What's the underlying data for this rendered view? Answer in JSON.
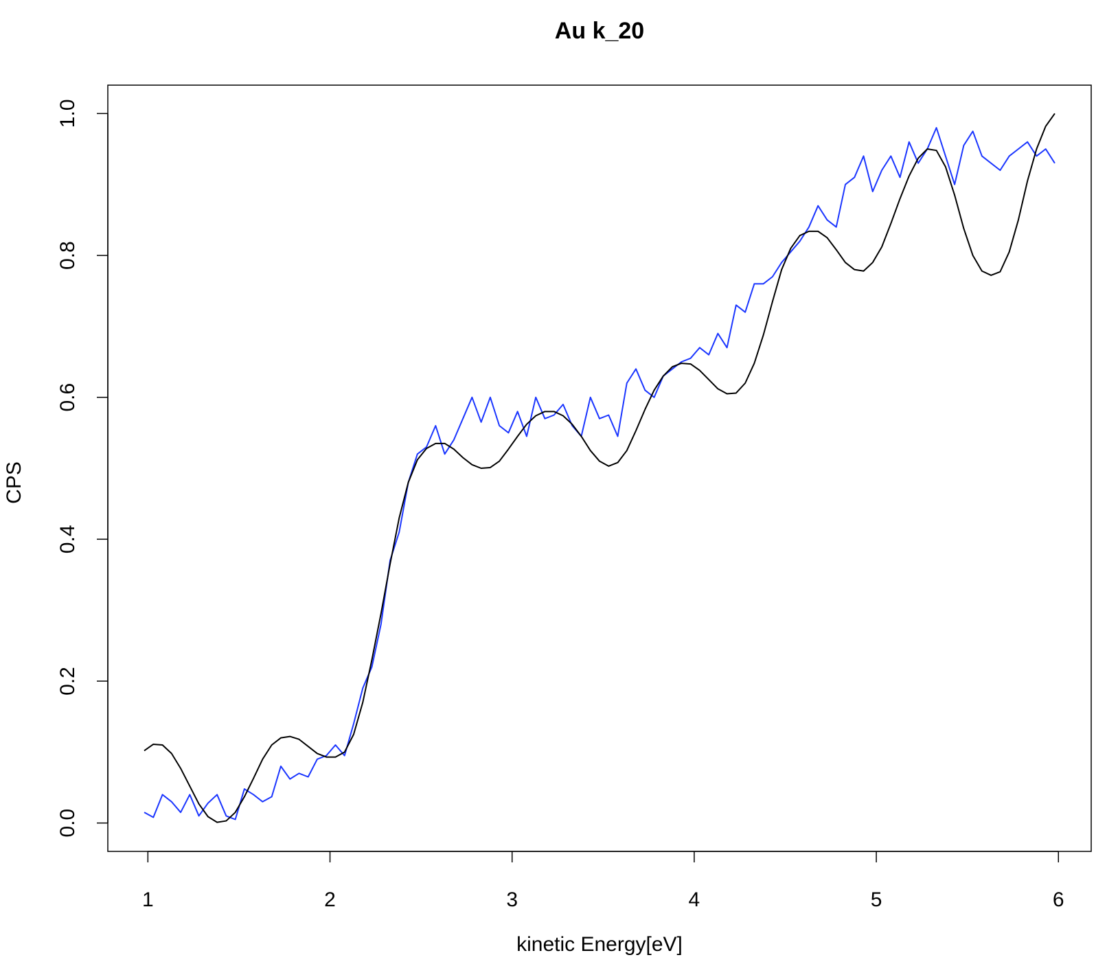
{
  "chart_data": {
    "type": "line",
    "title": "Au k_20",
    "x_label": "kinetic Energy[eV]",
    "y_label": "CPS",
    "x": [
      0.98,
      1.03,
      1.08,
      1.13,
      1.18,
      1.23,
      1.28,
      1.33,
      1.38,
      1.43,
      1.48,
      1.53,
      1.58,
      1.63,
      1.68,
      1.73,
      1.78,
      1.83,
      1.88,
      1.93,
      1.98,
      2.03,
      2.08,
      2.13,
      2.18,
      2.23,
      2.28,
      2.33,
      2.38,
      2.43,
      2.48,
      2.53,
      2.58,
      2.63,
      2.68,
      2.73,
      2.78,
      2.83,
      2.88,
      2.93,
      2.98,
      3.03,
      3.08,
      3.13,
      3.18,
      3.23,
      3.28,
      3.33,
      3.38,
      3.43,
      3.48,
      3.53,
      3.58,
      3.63,
      3.68,
      3.73,
      3.78,
      3.83,
      3.88,
      3.93,
      3.98,
      4.03,
      4.08,
      4.13,
      4.18,
      4.23,
      4.28,
      4.33,
      4.38,
      4.43,
      4.48,
      4.53,
      4.58,
      4.63,
      4.68,
      4.73,
      4.78,
      4.83,
      4.88,
      4.93,
      4.98,
      5.03,
      5.08,
      5.13,
      5.18,
      5.23,
      5.28,
      5.33,
      5.38,
      5.43,
      5.48,
      5.53,
      5.58,
      5.63,
      5.68,
      5.73,
      5.78,
      5.83,
      5.88,
      5.93,
      5.98
    ],
    "series": [
      {
        "color": "#1a35ff",
        "values": [
          0.015,
          0.008,
          0.04,
          0.03,
          0.015,
          0.04,
          0.01,
          0.028,
          0.04,
          0.01,
          0.005,
          0.048,
          0.04,
          0.03,
          0.037,
          0.08,
          0.062,
          0.07,
          0.065,
          0.09,
          0.095,
          0.11,
          0.095,
          0.14,
          0.19,
          0.22,
          0.28,
          0.37,
          0.41,
          0.48,
          0.52,
          0.53,
          0.56,
          0.52,
          0.54,
          0.57,
          0.6,
          0.565,
          0.6,
          0.56,
          0.55,
          0.58,
          0.545,
          0.6,
          0.57,
          0.575,
          0.59,
          0.56,
          0.545,
          0.6,
          0.57,
          0.575,
          0.545,
          0.62,
          0.64,
          0.61,
          0.6,
          0.63,
          0.64,
          0.65,
          0.655,
          0.67,
          0.66,
          0.69,
          0.67,
          0.73,
          0.72,
          0.76,
          0.76,
          0.77,
          0.79,
          0.805,
          0.82,
          0.84,
          0.87,
          0.85,
          0.84,
          0.9,
          0.91,
          0.94,
          0.89,
          0.92,
          0.94,
          0.91,
          0.96,
          0.93,
          0.95,
          0.98,
          0.94,
          0.9,
          0.955,
          0.975,
          0.94,
          0.93,
          0.92,
          0.94,
          0.95,
          0.96,
          0.94,
          0.95,
          0.93
        ]
      },
      {
        "color": "#000000",
        "values": [
          0.102,
          0.111,
          0.11,
          0.098,
          0.077,
          0.052,
          0.027,
          0.009,
          0.001,
          0.003,
          0.015,
          0.037,
          0.063,
          0.09,
          0.11,
          0.12,
          0.122,
          0.118,
          0.108,
          0.098,
          0.093,
          0.093,
          0.1,
          0.125,
          0.17,
          0.23,
          0.295,
          0.365,
          0.43,
          0.48,
          0.512,
          0.528,
          0.535,
          0.535,
          0.527,
          0.515,
          0.505,
          0.5,
          0.501,
          0.51,
          0.527,
          0.545,
          0.562,
          0.574,
          0.58,
          0.58,
          0.574,
          0.562,
          0.545,
          0.525,
          0.51,
          0.503,
          0.508,
          0.525,
          0.553,
          0.583,
          0.61,
          0.63,
          0.643,
          0.648,
          0.647,
          0.638,
          0.625,
          0.612,
          0.605,
          0.606,
          0.62,
          0.648,
          0.688,
          0.735,
          0.78,
          0.81,
          0.828,
          0.834,
          0.834,
          0.825,
          0.808,
          0.79,
          0.78,
          0.778,
          0.79,
          0.812,
          0.845,
          0.88,
          0.912,
          0.937,
          0.95,
          0.948,
          0.925,
          0.885,
          0.838,
          0.8,
          0.778,
          0.772,
          0.777,
          0.805,
          0.85,
          0.905,
          0.95,
          0.982,
          1.0
        ]
      }
    ],
    "xlim": [
      0.78,
      6.18
    ],
    "ylim": [
      -0.04,
      1.04
    ],
    "xticks": [
      1,
      2,
      3,
      4,
      5,
      6
    ],
    "yticks": [
      {
        "value": 0,
        "label": "0.0"
      },
      0.2,
      0.4,
      0.6,
      0.8,
      {
        "value": 1,
        "label": "1.0"
      }
    ]
  }
}
